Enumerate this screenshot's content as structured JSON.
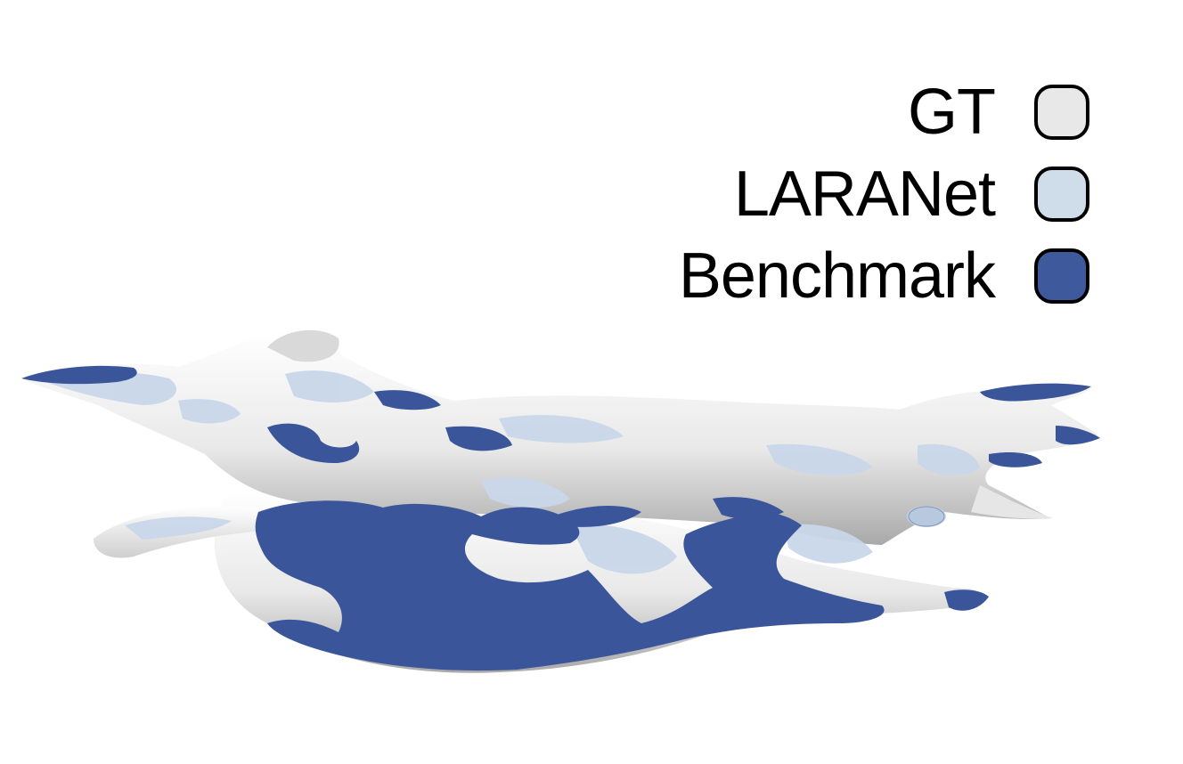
{
  "legend": {
    "items": [
      {
        "label": "GT",
        "color": "#e8e8e8"
      },
      {
        "label": "LARANet",
        "color": "#cfdcea"
      },
      {
        "label": "Benchmark",
        "color": "#3f5a9c"
      }
    ]
  },
  "colors": {
    "background": "#ffffff",
    "gt_surface": "#ededed",
    "gt_shadow": "#b9b9b9",
    "laranet_surface": "#c9d7ea",
    "benchmark_surface": "#3b559a"
  }
}
